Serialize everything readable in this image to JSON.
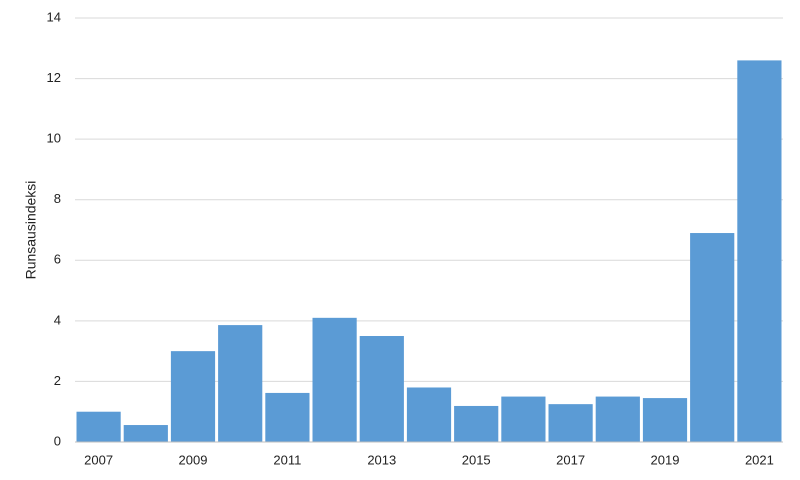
{
  "chart_data": {
    "type": "bar",
    "y_label": "Runsausindeksi",
    "categories": [
      "2007",
      null,
      "2009",
      null,
      "2011",
      null,
      "2013",
      null,
      "2015",
      null,
      "2017",
      null,
      "2019",
      null,
      "2021"
    ],
    "values": [
      1.0,
      0.56,
      3.0,
      3.86,
      1.62,
      4.1,
      3.5,
      1.8,
      1.19,
      1.5,
      1.25,
      1.5,
      1.45,
      6.9,
      12.6
    ],
    "color": "#5b9bd5",
    "ylim": [
      0,
      14
    ],
    "yticks": [
      0,
      2,
      4,
      6,
      8,
      10,
      12,
      14
    ],
    "grid": true
  }
}
